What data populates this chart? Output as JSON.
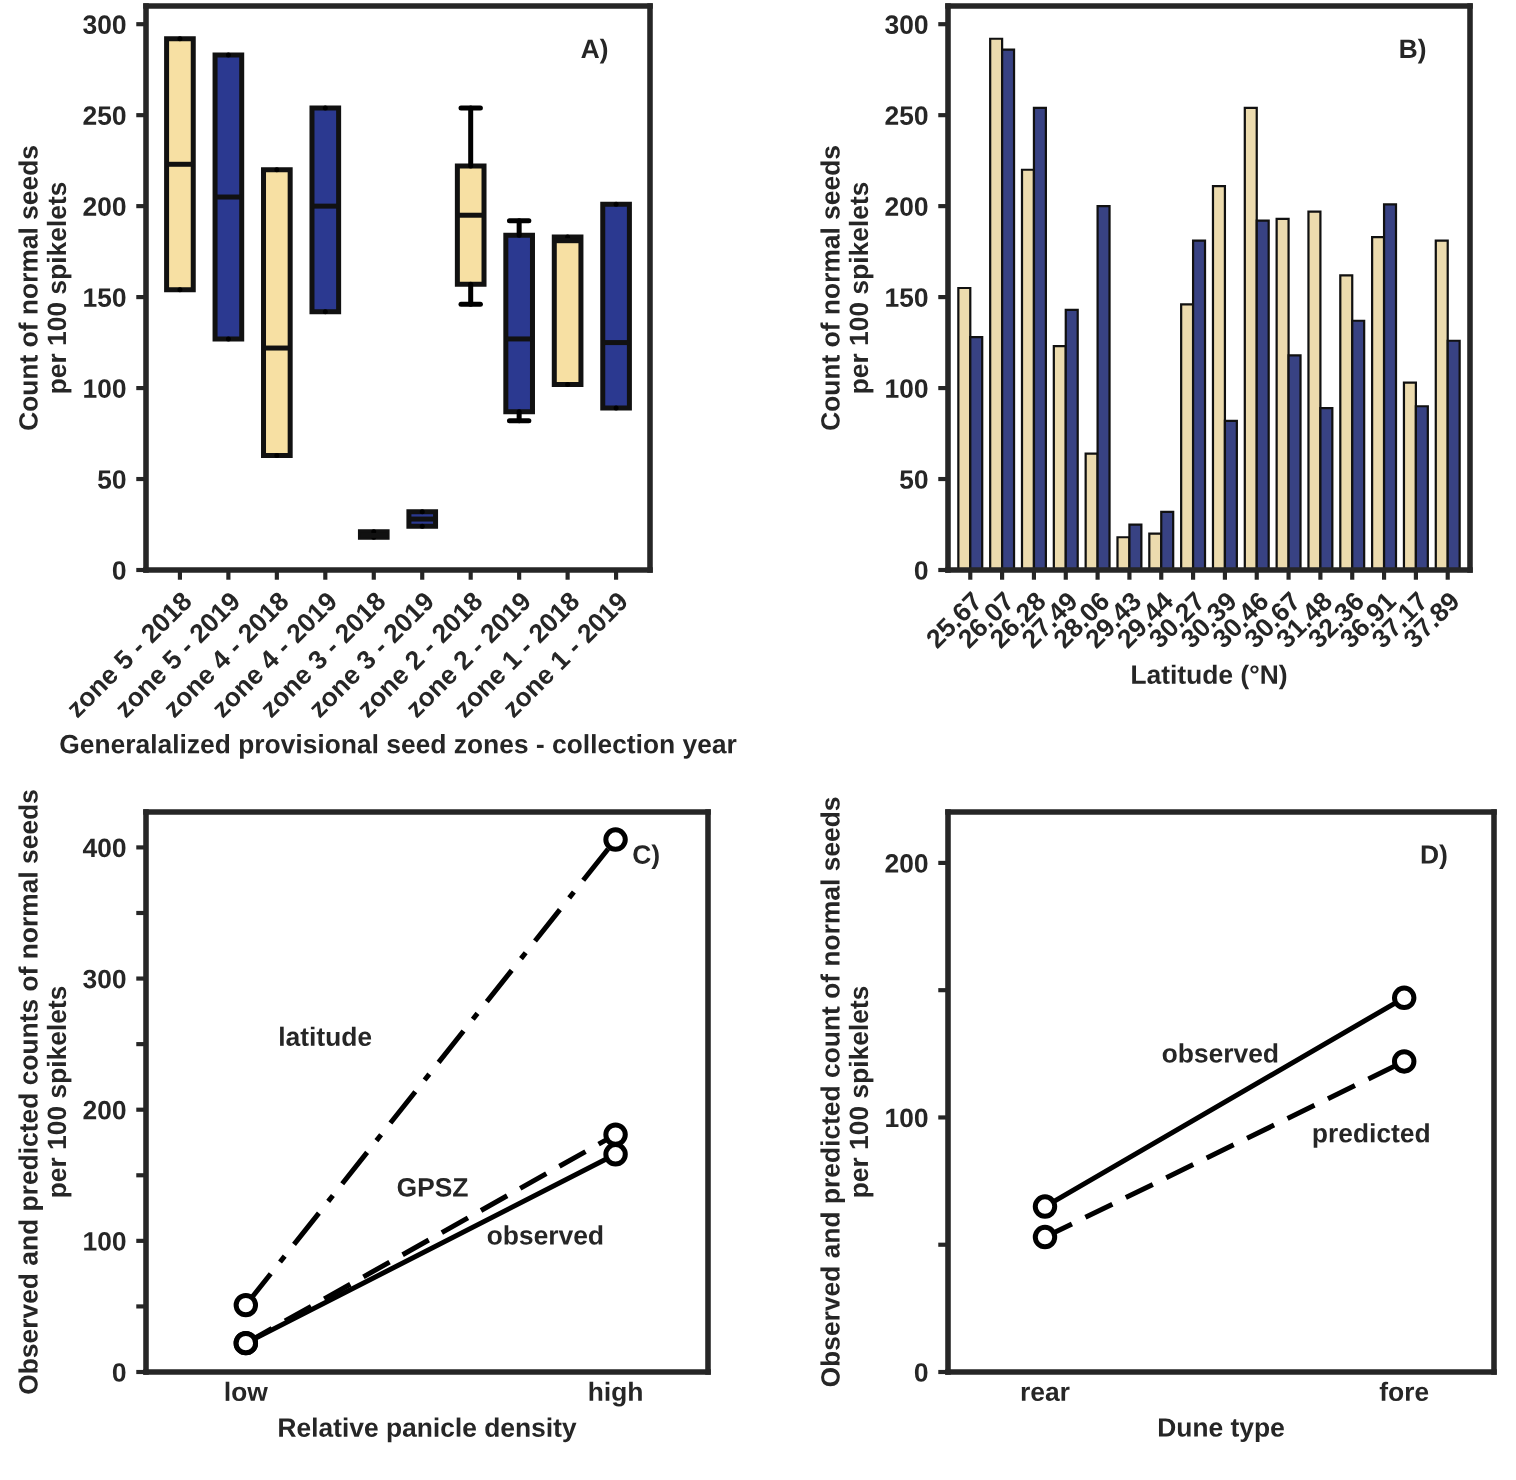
{
  "chart_data": [
    {
      "type": "box",
      "xlabel": "Generalalized provisional seed zones - collection year",
      "ylabel": "Count of normal seeds\nper 100 spikelets",
      "annotations": [
        "A)"
      ],
      "categories": [
        "zone 5 - 2018",
        "zone 5 - 2019",
        "zone 4 - 2018",
        "zone 4 - 2019",
        "zone 3 - 2018",
        "zone 3 - 2019",
        "zone 2 - 2018",
        "zone 2 - 2019",
        "zone 1 - 2018",
        "zone 1 - 2019"
      ],
      "colors": [
        "#f7e0a3",
        "#2b3990",
        "#f7e0a3",
        "#2b3990",
        "#f7e0a3",
        "#2b3990",
        "#f7e0a3",
        "#2b3990",
        "#f7e0a3",
        "#2b3990"
      ],
      "boxes": [
        {
          "low": 154,
          "q1": 154,
          "median": 223,
          "q3": 292,
          "high": 292
        },
        {
          "low": 127,
          "q1": 127,
          "median": 205,
          "q3": 283,
          "high": 283
        },
        {
          "low": 63,
          "q1": 63,
          "median": 122,
          "q3": 220,
          "high": 220
        },
        {
          "low": 142,
          "q1": 142,
          "median": 200,
          "q3": 254,
          "high": 254
        },
        {
          "low": 18,
          "q1": 18,
          "median": 19,
          "q3": 21,
          "high": 21
        },
        {
          "low": 24,
          "q1": 24,
          "median": 28,
          "q3": 32,
          "high": 32
        },
        {
          "low": 146,
          "q1": 157,
          "median": 195,
          "q3": 222,
          "high": 254
        },
        {
          "low": 82,
          "q1": 87,
          "median": 127,
          "q3": 184,
          "high": 192
        },
        {
          "low": 102,
          "q1": 102,
          "median": 181,
          "q3": 183,
          "high": 183
        },
        {
          "low": 89,
          "q1": 89,
          "median": 125,
          "q3": 201,
          "high": 201
        }
      ],
      "ylim": [
        0,
        310
      ],
      "yticks": [
        0,
        50,
        100,
        150,
        200,
        250,
        300
      ],
      "grid": false
    },
    {
      "type": "bar",
      "xlabel": "Latitude (°N)",
      "ylabel": "Count of normal seeds\nper 100 spikelets",
      "annotations": [
        "B)"
      ],
      "categories": [
        "25.67",
        "26.07",
        "26.28",
        "27.49",
        "28.06",
        "29.43",
        "29.44",
        "30.27",
        "30.39",
        "30.46",
        "30.67",
        "31.48",
        "32.36",
        "36.91",
        "37.17",
        "37.89"
      ],
      "series": [
        {
          "color": "#f7e0a3",
          "values": [
            155,
            292,
            220,
            123,
            64,
            18,
            20,
            146,
            211,
            254,
            193,
            197,
            162,
            183,
            103,
            181
          ]
        },
        {
          "color": "#2b3990",
          "values": [
            128,
            286,
            254,
            143,
            200,
            25,
            32,
            181,
            82,
            192,
            118,
            89,
            137,
            201,
            90,
            126
          ]
        }
      ],
      "ylim": [
        0,
        310
      ],
      "yticks": [
        0,
        50,
        100,
        150,
        200,
        250,
        300
      ],
      "legend": false,
      "grid": false
    },
    {
      "type": "line",
      "xlabel": "Relative panicle density",
      "ylabel": "Observed and predicted counts of normal seeds\nper 100 spikelets",
      "annotations": [
        "C)"
      ],
      "categories": [
        "low",
        "high"
      ],
      "series": [
        {
          "name": "latitude",
          "color": "#000000",
          "line_style": "dashdot",
          "values": [
            51,
            406
          ]
        },
        {
          "name": "GPSZ",
          "color": "#000000",
          "line_style": "dashed",
          "values": [
            22,
            181
          ]
        },
        {
          "name": "observed",
          "color": "#000000",
          "line_style": "solid",
          "values": [
            22,
            166
          ]
        }
      ],
      "marker": "circle",
      "ylim": [
        0,
        427
      ],
      "yticks": [
        0,
        {
          "value": 50,
          "label": null
        },
        100,
        {
          "value": 150,
          "label": null
        },
        200,
        {
          "value": 250,
          "label": null
        },
        300,
        {
          "value": 350,
          "label": null
        },
        400
      ],
      "legend": false,
      "grid": false
    },
    {
      "type": "line",
      "xlabel": "Dune type",
      "ylabel": "Observed and predicted count of normal seeds\nper 100 spikelets",
      "annotations": [
        "D)"
      ],
      "categories": [
        "rear",
        "fore"
      ],
      "series": [
        {
          "name": "observed",
          "color": "#000000",
          "line_style": "solid",
          "values": [
            65,
            147
          ]
        },
        {
          "name": "predicted",
          "color": "#000000",
          "line_style": "dashed",
          "values": [
            53,
            122
          ]
        }
      ],
      "marker": "circle",
      "ylim": [
        0,
        220
      ],
      "yticks": [
        0,
        {
          "value": 50,
          "label": null
        },
        100,
        {
          "value": 150,
          "label": null
        },
        200
      ],
      "legend": false,
      "grid": false
    }
  ]
}
